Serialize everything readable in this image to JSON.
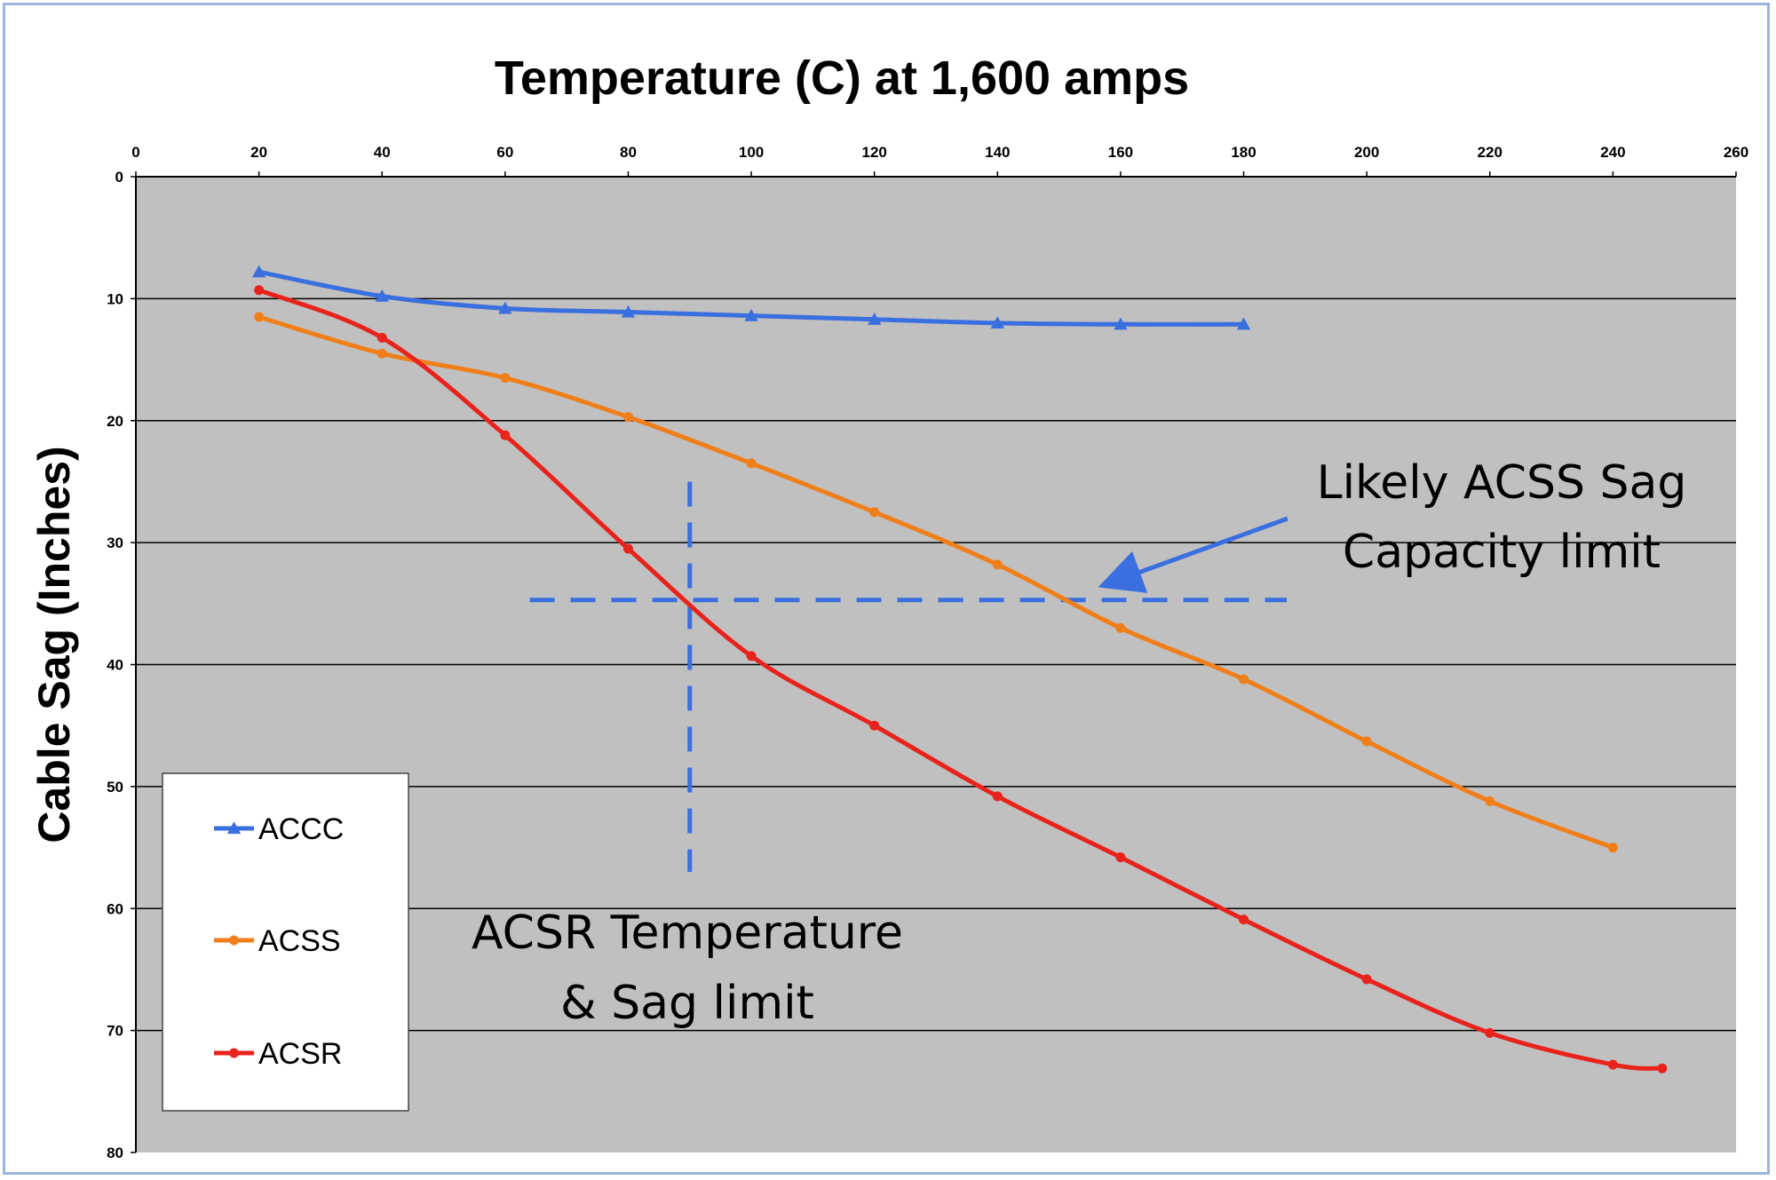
{
  "chart_data": {
    "type": "line",
    "title": "Temperature (C) at 1,600 amps",
    "xlabel": "",
    "ylabel": "Cable Sag (Inches)",
    "xlim": [
      0,
      260
    ],
    "ylim": [
      0,
      80
    ],
    "y_inverted": true,
    "x_axis_position": "top",
    "x_ticks": [
      0,
      20,
      40,
      60,
      80,
      100,
      120,
      140,
      160,
      180,
      200,
      220,
      240,
      260
    ],
    "y_ticks": [
      0,
      10,
      20,
      30,
      40,
      50,
      60,
      70,
      80
    ],
    "grid": "horizontal",
    "plot_background": "#c0c0c0",
    "legend_position": "bottom-left",
    "series": [
      {
        "name": "ACCC",
        "color": "#3a6fe0",
        "marker": "triangle",
        "x": [
          20,
          40,
          60,
          80,
          100,
          120,
          140,
          160,
          180
        ],
        "y": [
          7.8,
          9.8,
          10.8,
          11.1,
          11.4,
          11.7,
          12.0,
          12.1,
          12.1
        ]
      },
      {
        "name": "ACSS",
        "color": "#f07f1a",
        "marker": "circle",
        "x": [
          20,
          40,
          60,
          80,
          100,
          120,
          140,
          160,
          180,
          200,
          220,
          240
        ],
        "y": [
          11.5,
          14.5,
          16.5,
          19.7,
          23.5,
          27.5,
          31.8,
          37.0,
          41.2,
          46.3,
          51.2,
          55.0
        ]
      },
      {
        "name": "ACSR",
        "color": "#e8231c",
        "marker": "circle",
        "x": [
          20,
          40,
          60,
          80,
          100,
          120,
          140,
          160,
          180,
          200,
          220,
          240,
          248
        ],
        "y": [
          9.3,
          13.2,
          21.2,
          30.5,
          39.3,
          45.0,
          50.8,
          55.8,
          60.9,
          65.8,
          70.2,
          72.8,
          73.1
        ]
      }
    ],
    "annotations": [
      {
        "text_lines": [
          "Likely ACSS Sag",
          "Capacity limit"
        ],
        "arrow_to": [
          157,
          33.2
        ]
      },
      {
        "text_lines": [
          "ACSR Temperature",
          "& Sag limit"
        ]
      }
    ],
    "reference_lines": [
      {
        "orientation": "horizontal",
        "y": 34.7,
        "x_from": 64,
        "x_to": 187,
        "style": "dashed",
        "color": "#3a6fe0"
      },
      {
        "orientation": "vertical",
        "x": 90,
        "y_from": 25,
        "y_to": 57,
        "style": "dashed",
        "color": "#3a6fe0"
      }
    ]
  }
}
